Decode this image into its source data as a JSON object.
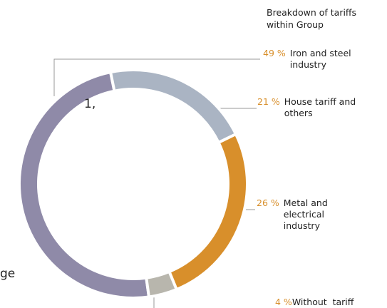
{
  "chart_data": {
    "type": "donut",
    "title": "Breakdown of tariffs within Group",
    "categories": [
      "Iron and steel industry",
      "House tariff and others",
      "Metal and electrical industry",
      "Without  tariff"
    ],
    "values": [
      49,
      21,
      26,
      4
    ],
    "value_labels": [
      "49 %",
      "21 %",
      "26 %",
      "4 %"
    ],
    "colors": [
      "#8f8aa8",
      "#aab4c3",
      "#d88f2b",
      "#b8b6ad"
    ],
    "fragments": [
      "1,",
      "ge"
    ]
  }
}
